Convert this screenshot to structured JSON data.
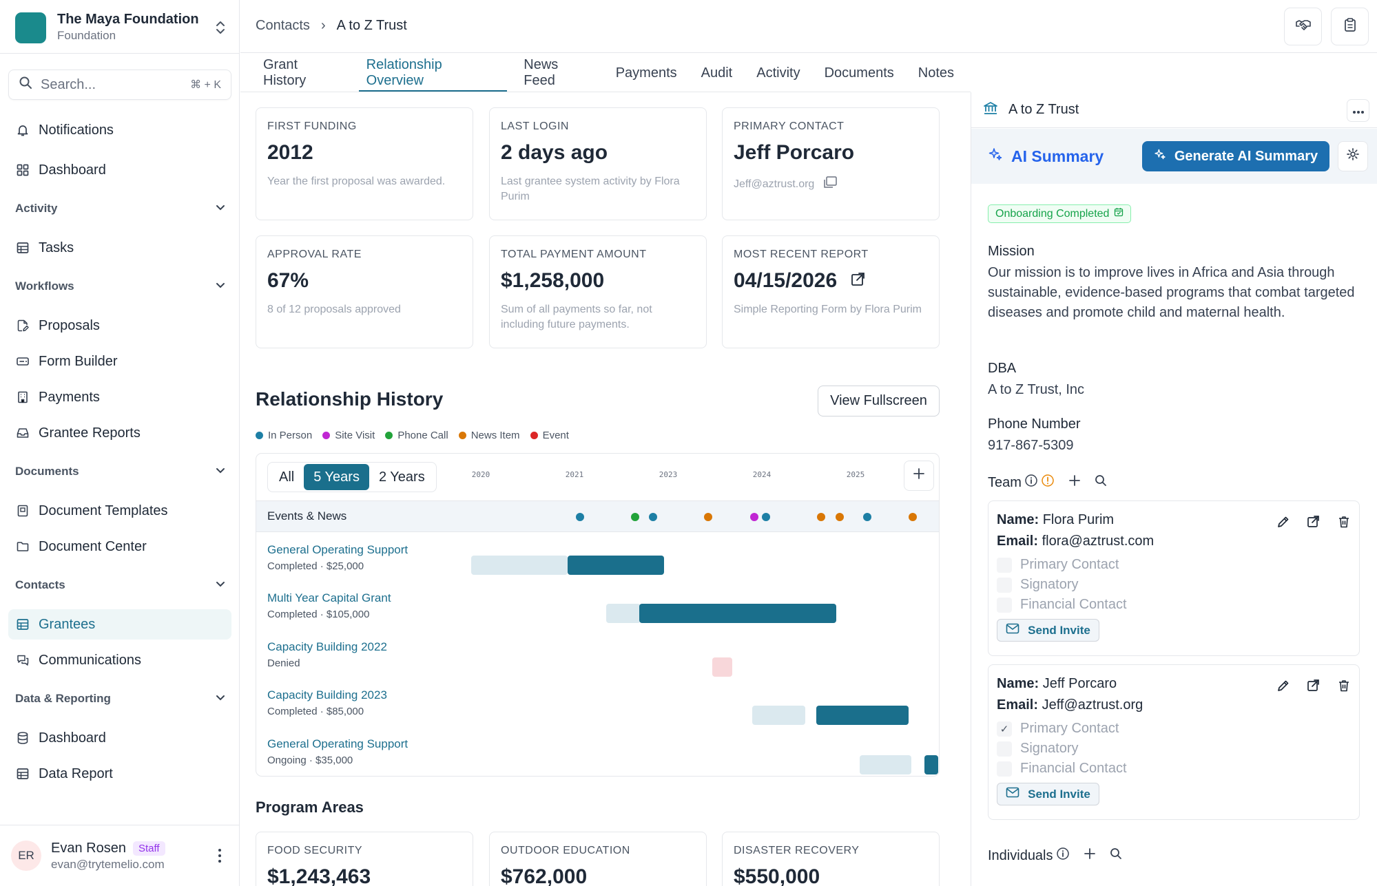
{
  "org": {
    "name": "The Maya Foundation",
    "type": "Foundation"
  },
  "search": {
    "placeholder": "Search...",
    "shortcut": "⌘ + K"
  },
  "nav": {
    "notifications": "Notifications",
    "dashboard": "Dashboard",
    "activity_section": "Activity",
    "tasks": "Tasks",
    "workflows_section": "Workflows",
    "proposals": "Proposals",
    "form_builder": "Form Builder",
    "payments": "Payments",
    "grantee_reports": "Grantee Reports",
    "documents_section": "Documents",
    "document_templates": "Document Templates",
    "document_center": "Document Center",
    "contacts_section": "Contacts",
    "grantees": "Grantees",
    "communications": "Communications",
    "data_section": "Data & Reporting",
    "data_dashboard": "Dashboard",
    "data_report": "Data Report"
  },
  "user": {
    "initials": "ER",
    "name": "Evan Rosen",
    "badge": "Staff",
    "email": "evan@trytemelio.com"
  },
  "breadcrumb": {
    "parent": "Contacts",
    "separator": "›",
    "current": "A to Z Trust"
  },
  "tabs": [
    "Grant History",
    "Relationship Overview",
    "News Feed",
    "Payments",
    "Audit",
    "Activity",
    "Documents",
    "Notes"
  ],
  "active_tab": "Relationship Overview",
  "stats": {
    "first_funding": {
      "label": "FIRST FUNDING",
      "value": "2012",
      "desc": "Year the first proposal was awarded."
    },
    "last_login": {
      "label": "LAST LOGIN",
      "value": "2 days ago",
      "desc": "Last grantee system activity by Flora Purim"
    },
    "primary_contact": {
      "label": "PRIMARY CONTACT",
      "value": "Jeff Porcaro",
      "email": "Jeff@aztrust.org"
    },
    "approval_rate": {
      "label": "APPROVAL RATE",
      "value": "67%",
      "desc": "8 of 12 proposals approved"
    },
    "total_payment": {
      "label": "TOTAL PAYMENT AMOUNT",
      "value": "$1,258,000",
      "desc": "Sum of all payments so far, not including future payments."
    },
    "recent_report": {
      "label": "MOST RECENT REPORT",
      "value": "04/15/2026",
      "desc": "Simple Reporting Form by Flora Purim"
    }
  },
  "history": {
    "title": "Relationship History",
    "fullscreen_label": "View Fullscreen",
    "legend": [
      {
        "label": "In Person",
        "color": "#1d7fa5"
      },
      {
        "label": "Site Visit",
        "color": "#c026d3"
      },
      {
        "label": "Phone Call",
        "color": "#22a33a"
      },
      {
        "label": "News Item",
        "color": "#d97706"
      },
      {
        "label": "Event",
        "color": "#dc2626"
      }
    ],
    "ranges": [
      "All",
      "5 Years",
      "2 Years"
    ],
    "active_range": "5 Years",
    "years": [
      "2020",
      "2021",
      "2023",
      "2024",
      "2025"
    ],
    "events_label": "Events & News",
    "grants": [
      {
        "name": "General Operating Support",
        "status": "Completed · $25,000"
      },
      {
        "name": "Multi Year Capital Grant",
        "status": "Completed · $105,000"
      },
      {
        "name": "Capacity Building 2022",
        "status": "Denied"
      },
      {
        "name": "Capacity Building 2023",
        "status": "Completed · $85,000"
      },
      {
        "name": "General Operating Support",
        "status": "Ongoing · $35,000"
      }
    ]
  },
  "program_areas": {
    "title": "Program Areas",
    "items": [
      {
        "label": "FOOD SECURITY",
        "value": "$1,243,463"
      },
      {
        "label": "OUTDOOR EDUCATION",
        "value": "$762,000"
      },
      {
        "label": "DISASTER RECOVERY",
        "value": "$550,000"
      }
    ]
  },
  "panel": {
    "title": "A to Z Trust",
    "ai_title": "AI Summary",
    "generate_label": "Generate AI Summary",
    "status_badge": "Onboarding Completed",
    "mission_label": "Mission",
    "mission": "Our mission is to improve lives in Africa and Asia through sustainable, evidence-based programs that combat targeted diseases and promote child and maternal health.",
    "dba_label": "DBA",
    "dba": "A to Z Trust, Inc",
    "phone_label": "Phone Number",
    "phone": "917-867-5309",
    "team_label": "Team",
    "individuals_label": "Individuals",
    "name_key": "Name:",
    "email_key": "Email:",
    "role_primary": "Primary Contact",
    "role_signatory": "Signatory",
    "role_financial": "Financial Contact",
    "invite_label": "Send Invite",
    "members": [
      {
        "name": "Flora Purim",
        "email": "flora@aztrust.com",
        "primary": false
      },
      {
        "name": "Jeff Porcaro",
        "email": "Jeff@aztrust.org",
        "primary": true
      }
    ]
  },
  "colors": {
    "accent": "#1d6f8e",
    "bar_dark": "#1a6f8c",
    "bar_light": "#dbe9ef",
    "bar_denied": "#f8d7da"
  }
}
